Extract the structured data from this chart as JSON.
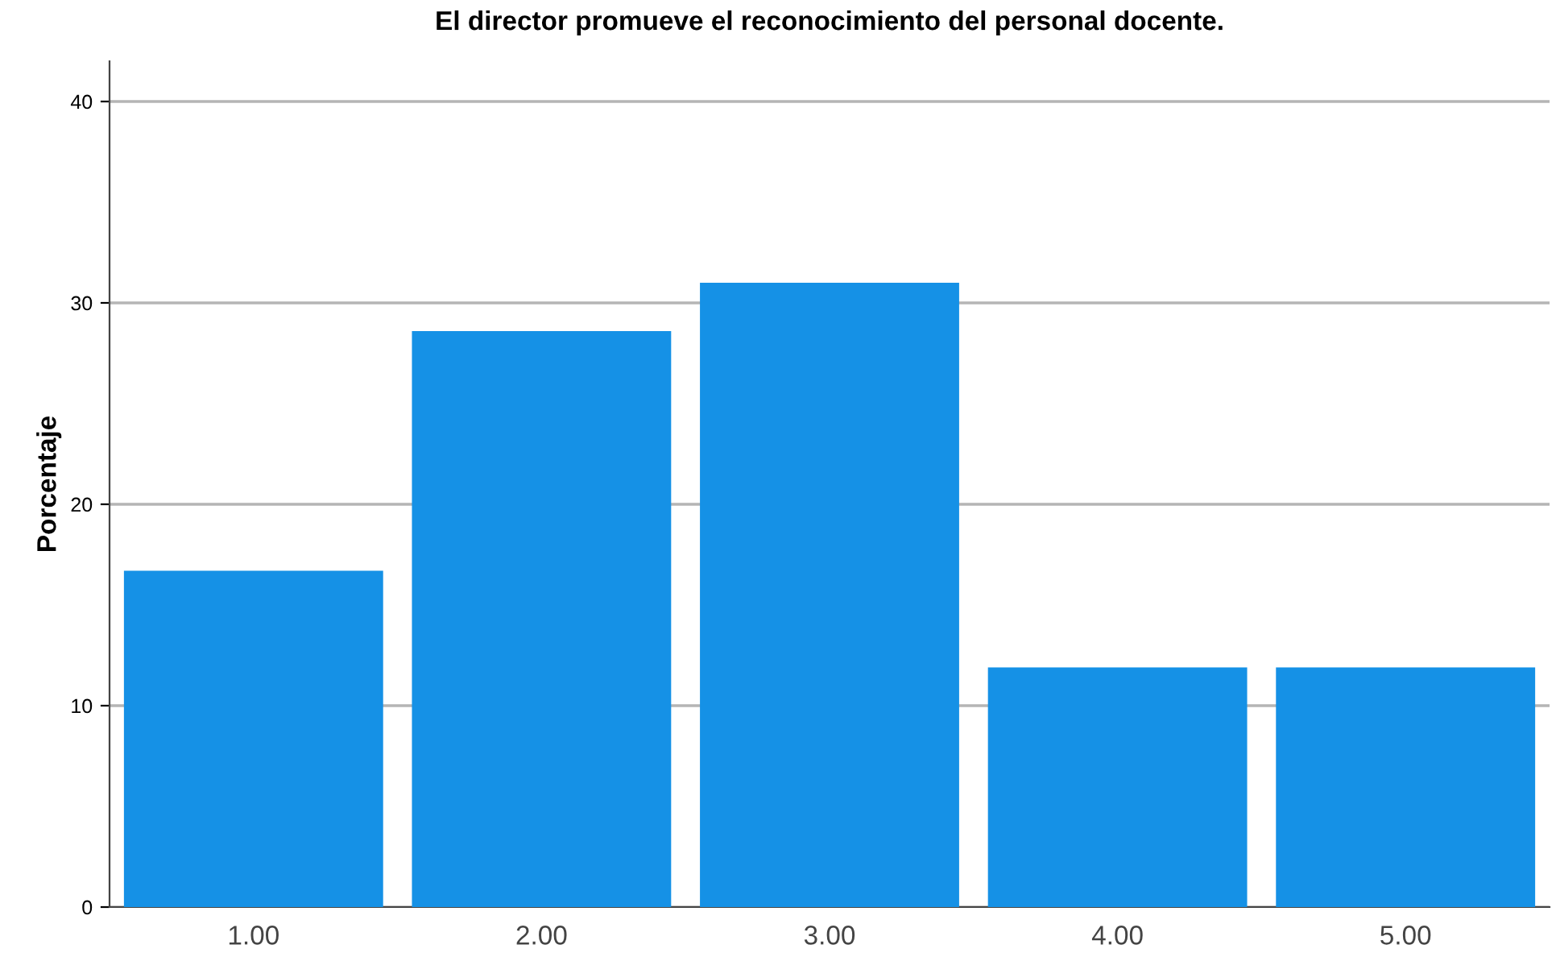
{
  "chart_data": {
    "type": "bar",
    "title": "El director promueve el reconocimiento del personal docente.",
    "ylabel": "Porcentaje",
    "categories": [
      "1.00",
      "2.00",
      "3.00",
      "4.00",
      "5.00"
    ],
    "values": [
      16.7,
      28.6,
      31.0,
      11.9,
      11.9
    ],
    "color": "#1591e6",
    "ylim": [
      0,
      42
    ],
    "yticks": [
      0,
      10,
      20,
      30,
      40
    ],
    "grid": "y"
  }
}
